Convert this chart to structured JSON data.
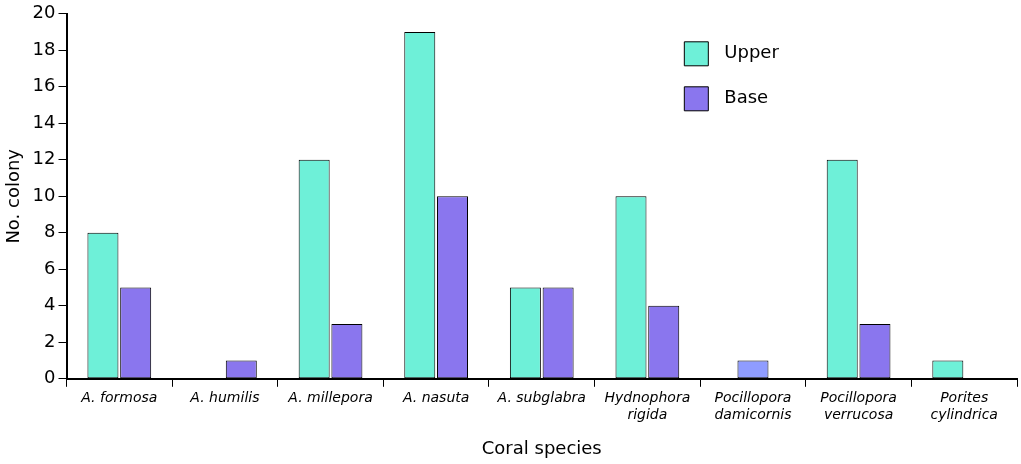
{
  "chart_data": {
    "type": "bar",
    "xlabel": "Coral species",
    "ylabel": "No. colony",
    "categories": [
      "A. formosa",
      "A. humilis",
      "A. millepora",
      "A. nasuta",
      "A. subglabra",
      "Hydnophora rigida",
      "Pocillopora damicornis",
      "Pocillopora verrucosa",
      "Porites cylindrica"
    ],
    "series": [
      {
        "name": "Upper",
        "color": "#6ef0d8",
        "values": [
          8,
          0,
          12,
          19,
          5,
          10,
          null,
          12,
          1
        ]
      },
      {
        "name": "Base",
        "color": "#8a76ee",
        "values": [
          5,
          1,
          3,
          10,
          5,
          4,
          null,
          3,
          0
        ]
      },
      {
        "color": "#8f9cff",
        "values": [
          null,
          null,
          null,
          null,
          null,
          null,
          1,
          null,
          null
        ]
      }
    ],
    "ylim": [
      0,
      20
    ],
    "yticks": [
      0,
      2,
      4,
      6,
      8,
      10,
      12,
      14,
      16,
      18,
      20
    ],
    "grid": false,
    "legend": "top right"
  }
}
